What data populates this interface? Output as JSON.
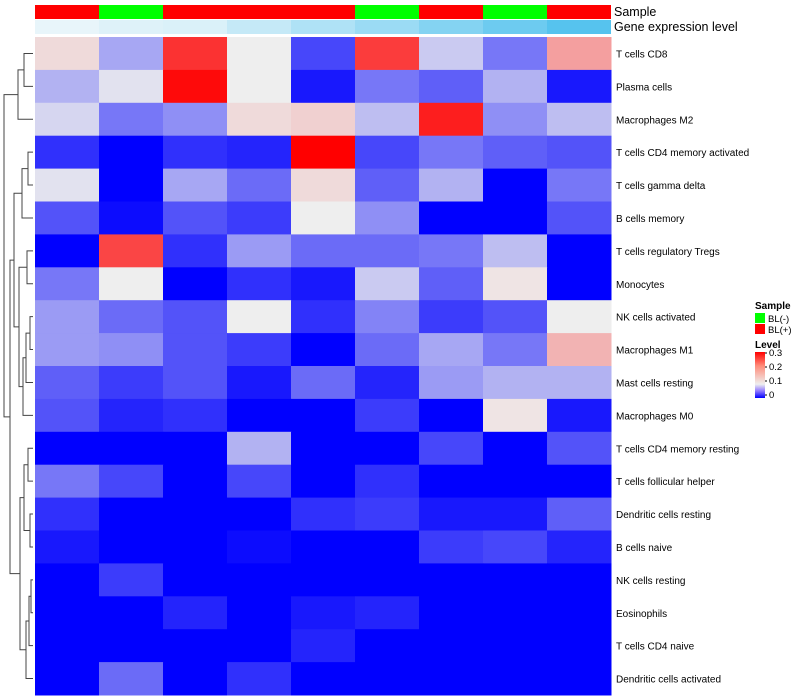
{
  "chart_data": {
    "type": "heatmap",
    "annotation_labels": {
      "sample": "Sample",
      "expression": "Gene expression level"
    },
    "columns": [
      {
        "sample": "BL(+)",
        "expression": 0.05
      },
      {
        "sample": "BL(-)",
        "expression": 0.12
      },
      {
        "sample": "BL(+)",
        "expression": 0.14
      },
      {
        "sample": "BL(+)",
        "expression": 0.28
      },
      {
        "sample": "BL(+)",
        "expression": 0.42
      },
      {
        "sample": "BL(-)",
        "expression": 0.55
      },
      {
        "sample": "BL(+)",
        "expression": 0.7
      },
      {
        "sample": "BL(-)",
        "expression": 0.85
      },
      {
        "sample": "BL(+)",
        "expression": 1.0
      }
    ],
    "rows": [
      {
        "label": "T cells CD8",
        "values": [
          0.12,
          0.07,
          0.29,
          0.1,
          0.03,
          0.28,
          0.085,
          0.05,
          0.18
        ]
      },
      {
        "label": "Plasma cells",
        "values": [
          0.075,
          0.095,
          0.33,
          0.1,
          0.01,
          0.05,
          0.04,
          0.075,
          0.01
        ]
      },
      {
        "label": "Macrophages M2",
        "values": [
          0.09,
          0.05,
          0.06,
          0.12,
          0.13,
          0.08,
          0.31,
          0.06,
          0.08
        ]
      },
      {
        "label": "T cells CD4 memory activated",
        "values": [
          0.02,
          0.0,
          0.02,
          0.015,
          0.34,
          0.03,
          0.05,
          0.04,
          0.035
        ]
      },
      {
        "label": "T cells gamma delta",
        "values": [
          0.095,
          0.0,
          0.07,
          0.045,
          0.12,
          0.04,
          0.075,
          0.0,
          0.05
        ]
      },
      {
        "label": "B cells memory",
        "values": [
          0.035,
          0.005,
          0.035,
          0.025,
          0.1,
          0.06,
          0.0,
          0.0,
          0.035
        ]
      },
      {
        "label": "T cells regulatory  Tregs",
        "values": [
          0.0,
          0.27,
          0.02,
          0.065,
          0.045,
          0.045,
          0.05,
          0.08,
          0.0
        ]
      },
      {
        "label": "Monocytes",
        "values": [
          0.05,
          0.1,
          0.0,
          0.02,
          0.01,
          0.085,
          0.04,
          0.11,
          0.0
        ]
      },
      {
        "label": "NK cells activated",
        "values": [
          0.065,
          0.045,
          0.035,
          0.1,
          0.02,
          0.055,
          0.025,
          0.035,
          0.1
        ]
      },
      {
        "label": "Macrophages M1",
        "values": [
          0.065,
          0.06,
          0.035,
          0.025,
          0.0,
          0.045,
          0.07,
          0.05,
          0.16
        ]
      },
      {
        "label": "Mast cells resting",
        "values": [
          0.04,
          0.025,
          0.035,
          0.01,
          0.045,
          0.015,
          0.065,
          0.075,
          0.075
        ]
      },
      {
        "label": "Macrophages M0",
        "values": [
          0.035,
          0.015,
          0.02,
          0.0,
          0.0,
          0.025,
          0.0,
          0.11,
          0.01
        ]
      },
      {
        "label": "T cells CD4 memory resting",
        "values": [
          0.0,
          0.0,
          0.0,
          0.075,
          0.0,
          0.0,
          0.03,
          0.0,
          0.035
        ]
      },
      {
        "label": "T cells follicular helper",
        "values": [
          0.05,
          0.03,
          0.0,
          0.03,
          0.0,
          0.02,
          0.0,
          0.0,
          0.0
        ]
      },
      {
        "label": "Dendritic cells resting",
        "values": [
          0.02,
          0.0,
          0.0,
          0.0,
          0.02,
          0.025,
          0.01,
          0.01,
          0.04
        ]
      },
      {
        "label": "B cells naive",
        "values": [
          0.01,
          0.0,
          0.0,
          0.005,
          0.0,
          0.0,
          0.025,
          0.03,
          0.015
        ]
      },
      {
        "label": "NK cells resting",
        "values": [
          0.0,
          0.025,
          0.0,
          0.0,
          0.0,
          0.0,
          0.0,
          0.0,
          0.0
        ]
      },
      {
        "label": "Eosinophils",
        "values": [
          0.0,
          0.0,
          0.015,
          0.0,
          0.01,
          0.015,
          0.0,
          0.0,
          0.0
        ]
      },
      {
        "label": "T cells CD4 naive",
        "values": [
          0.0,
          0.0,
          0.0,
          0.0,
          0.015,
          0.0,
          0.0,
          0.0,
          0.0
        ]
      },
      {
        "label": "Dendritic cells activated",
        "values": [
          0.0,
          0.045,
          0.0,
          0.02,
          0.0,
          0.0,
          0.0,
          0.0,
          0.0
        ]
      }
    ],
    "color_scale": {
      "min": 0,
      "mid": 0.1,
      "max": 0.34,
      "low_color": "#0000ff",
      "mid_color": "#eeeeee",
      "high_color": "#ff0000"
    },
    "sample_colors": {
      "BL(-)": "#00ff00",
      "BL(+)": "#ff0000"
    },
    "expression_colors": {
      "low": "#f0f8fb",
      "high": "#56c3ee"
    },
    "legend": {
      "sample_title": "Sample",
      "sample_items": [
        "BL(-)",
        "BL(+)"
      ],
      "level_title": "Level",
      "level_ticks": [
        "0.3",
        "0.2",
        "0.1",
        "0"
      ]
    },
    "dendrogram": "row clustering tree (left)"
  }
}
